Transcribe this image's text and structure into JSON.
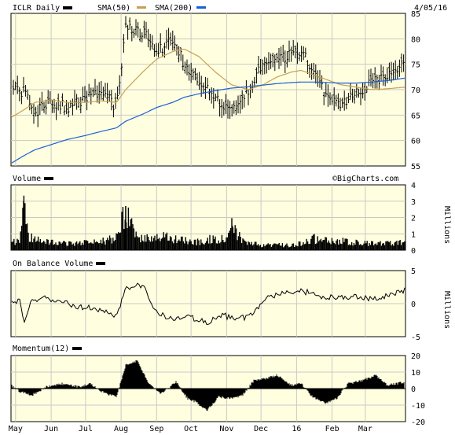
{
  "header": {
    "ticker_label": "ICLR Daily",
    "sma50_label": "SMA(50)",
    "sma200_label": "SMA(200)",
    "date_label": "4/05/16",
    "watermark": "©BigCharts.com"
  },
  "colors": {
    "panel_bg": "#ffffe0",
    "sma50": "#c8a050",
    "sma200": "#1a5fd6",
    "grid": "#c8c8c8",
    "price": "#000000"
  },
  "chart_data": [
    {
      "type": "ohlc",
      "title": "ICLR Daily",
      "ylim": [
        55,
        85
      ],
      "yticks": [
        55,
        60,
        65,
        70,
        75,
        80,
        85
      ],
      "x": [
        "2015-04-27",
        "2015-05-08",
        "2015-05-18",
        "2015-06-01",
        "2015-06-15",
        "2015-07-01",
        "2015-07-15",
        "2015-07-28",
        "2015-08-05",
        "2015-08-20",
        "2015-09-01",
        "2015-09-15",
        "2015-09-25",
        "2015-10-08",
        "2015-10-22",
        "2015-11-05",
        "2015-11-20",
        "2015-12-03",
        "2015-12-15",
        "2015-12-28",
        "2016-01-05",
        "2016-01-15",
        "2016-01-27",
        "2016-02-08",
        "2016-02-22",
        "2016-03-07",
        "2016-03-21",
        "2016-04-05"
      ],
      "series": [
        {
          "name": "Close",
          "values": [
            70.5,
            69.5,
            65.5,
            67.5,
            66.5,
            68.0,
            70.0,
            66.5,
            82.0,
            81.5,
            77.5,
            80.0,
            75.0,
            71.5,
            68.5,
            65.5,
            70.0,
            75.5,
            76.0,
            77.0,
            78.0,
            73.5,
            69.0,
            67.0,
            69.5,
            71.5,
            73.0,
            76.0
          ]
        },
        {
          "name": "SMA(50)",
          "values": [
            64.5,
            66.0,
            67.5,
            68.0,
            67.5,
            67.5,
            67.8,
            67.5,
            70.0,
            73.5,
            76.0,
            77.5,
            78.0,
            76.5,
            73.5,
            71.0,
            70.0,
            71.0,
            72.5,
            73.5,
            73.8,
            73.0,
            72.0,
            71.0,
            70.5,
            70.0,
            70.2,
            70.5
          ]
        },
        {
          "name": "SMA(200)",
          "values": [
            55.5,
            57.0,
            58.2,
            59.2,
            60.2,
            61.0,
            61.8,
            62.5,
            63.8,
            65.2,
            66.5,
            67.5,
            68.5,
            69.2,
            69.8,
            70.3,
            70.6,
            70.9,
            71.2,
            71.4,
            71.5,
            71.5,
            71.4,
            71.3,
            71.3,
            71.5,
            71.8,
            72.3
          ]
        }
      ]
    },
    {
      "type": "area",
      "title": "Volume",
      "ylabel": "Millions",
      "ylim": [
        0,
        4
      ],
      "yticks": [
        0,
        1,
        2,
        3,
        4
      ],
      "x": [
        "2015-04-27",
        "2015-05-05",
        "2015-05-08",
        "2015-05-12",
        "2015-05-25",
        "2015-06-10",
        "2015-06-25",
        "2015-07-10",
        "2015-07-20",
        "2015-07-30",
        "2015-08-05",
        "2015-08-12",
        "2015-08-25",
        "2015-09-08",
        "2015-09-20",
        "2015-10-05",
        "2015-10-20",
        "2015-11-02",
        "2015-11-06",
        "2015-11-15",
        "2015-12-01",
        "2015-12-15",
        "2015-12-30",
        "2016-01-15",
        "2016-01-30",
        "2016-02-15",
        "2016-03-01",
        "2016-03-20",
        "2016-04-05"
      ],
      "values": [
        0.5,
        0.6,
        3.0,
        0.8,
        0.5,
        0.4,
        0.4,
        0.5,
        0.6,
        0.8,
        2.7,
        1.0,
        0.7,
        0.8,
        0.6,
        0.5,
        0.7,
        0.6,
        1.5,
        0.5,
        0.3,
        0.3,
        0.3,
        0.7,
        0.6,
        0.5,
        0.4,
        0.4,
        0.5
      ]
    },
    {
      "type": "line",
      "title": "On Balance Volume",
      "ylabel": "Millions",
      "ylim": [
        -5,
        5
      ],
      "yticks": [
        -5,
        0,
        5
      ],
      "x": [
        "2015-04-27",
        "2015-05-05",
        "2015-05-08",
        "2015-05-15",
        "2015-05-28",
        "2015-06-10",
        "2015-06-25",
        "2015-07-10",
        "2015-07-28",
        "2015-08-05",
        "2015-08-20",
        "2015-09-01",
        "2015-09-15",
        "2015-09-30",
        "2015-10-15",
        "2015-10-30",
        "2015-11-10",
        "2015-11-25",
        "2015-12-05",
        "2015-12-20",
        "2016-01-05",
        "2016-01-20",
        "2016-02-05",
        "2016-02-20",
        "2016-03-05",
        "2016-03-20",
        "2016-04-05"
      ],
      "values": [
        0.0,
        0.5,
        -3.0,
        0.5,
        0.8,
        0.2,
        -0.5,
        -0.8,
        -2.0,
        2.5,
        2.8,
        -1.5,
        -2.2,
        -2.0,
        -2.8,
        -1.8,
        -2.5,
        -1.5,
        1.0,
        1.5,
        2.0,
        1.2,
        0.8,
        1.0,
        0.8,
        1.2,
        2.0
      ]
    },
    {
      "type": "area",
      "title": "Momentum(12)",
      "ylim": [
        -20,
        20
      ],
      "yticks": [
        -20,
        -10,
        0,
        10,
        20
      ],
      "x": [
        "2015-04-27",
        "2015-05-05",
        "2015-05-15",
        "2015-05-28",
        "2015-06-10",
        "2015-06-25",
        "2015-07-05",
        "2015-07-15",
        "2015-07-28",
        "2015-08-05",
        "2015-08-15",
        "2015-08-25",
        "2015-09-05",
        "2015-09-18",
        "2015-09-28",
        "2015-10-05",
        "2015-10-15",
        "2015-10-25",
        "2015-11-05",
        "2015-11-15",
        "2015-11-25",
        "2015-12-05",
        "2015-12-15",
        "2015-12-28",
        "2016-01-05",
        "2016-01-15",
        "2016-01-27",
        "2016-02-05",
        "2016-02-15",
        "2016-02-28",
        "2016-03-10",
        "2016-03-20",
        "2016-04-05"
      ],
      "values": [
        2,
        -2,
        -4,
        1,
        3,
        1,
        3,
        -2,
        -5,
        14,
        17,
        3,
        -3,
        4,
        -6,
        -8,
        -13,
        -5,
        -6,
        -4,
        5,
        6,
        8,
        2,
        3,
        -5,
        -9,
        -6,
        3,
        5,
        8,
        2,
        4
      ]
    }
  ],
  "x_axis": {
    "labels": [
      "May",
      "Jun",
      "Jul",
      "Aug",
      "Sep",
      "Oct",
      "Nov",
      "Dec",
      "16",
      "Feb",
      "Mar"
    ],
    "label_dates": [
      "2015-05-01",
      "2015-06-01",
      "2015-07-01",
      "2015-08-01",
      "2015-09-01",
      "2015-10-01",
      "2015-11-01",
      "2015-12-01",
      "2016-01-01",
      "2016-02-01",
      "2016-03-01"
    ]
  },
  "panel_titles": {
    "volume": "Volume",
    "obv": "On Balance Volume",
    "momentum": "Momentum(12)"
  },
  "axis_units": {
    "volume": "Millions",
    "obv": "Millions"
  }
}
